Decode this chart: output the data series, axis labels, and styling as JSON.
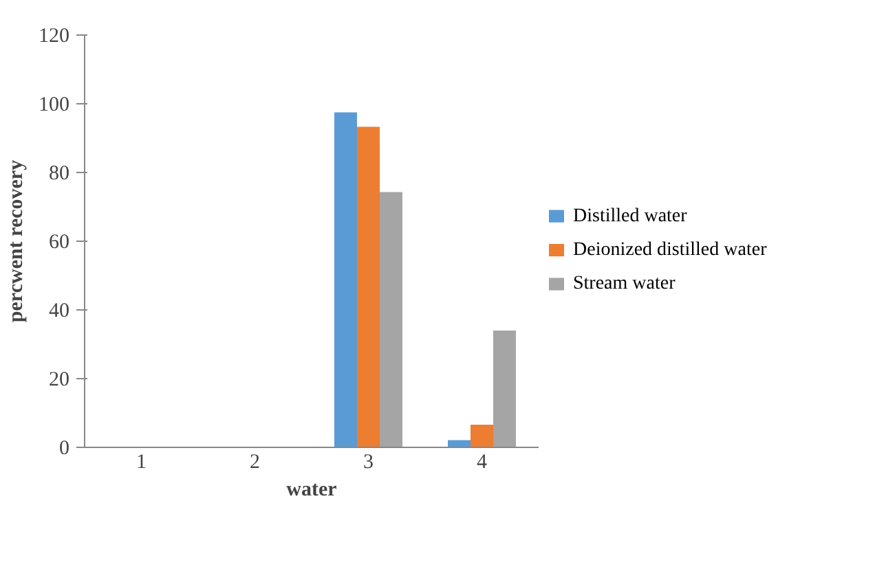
{
  "chart_data": {
    "type": "bar",
    "xlabel": "water",
    "ylabel": "percwent recovery",
    "categories": [
      "1",
      "2",
      "3",
      "4"
    ],
    "series": [
      {
        "name": "Distilled water",
        "color": "#5b9bd5",
        "values": [
          0,
          0,
          97.5,
          2.1
        ]
      },
      {
        "name": "Deionized distilled water",
        "color": "#ed7d31",
        "values": [
          0,
          0,
          93.3,
          6.6
        ]
      },
      {
        "name": "Stream water",
        "color": "#a5a5a5",
        "values": [
          0,
          0,
          74.3,
          34
        ]
      }
    ],
    "ylim": [
      0,
      120
    ],
    "yticks": [
      0,
      20,
      40,
      60,
      80,
      100,
      120
    ],
    "grid": false,
    "legend": "right"
  }
}
